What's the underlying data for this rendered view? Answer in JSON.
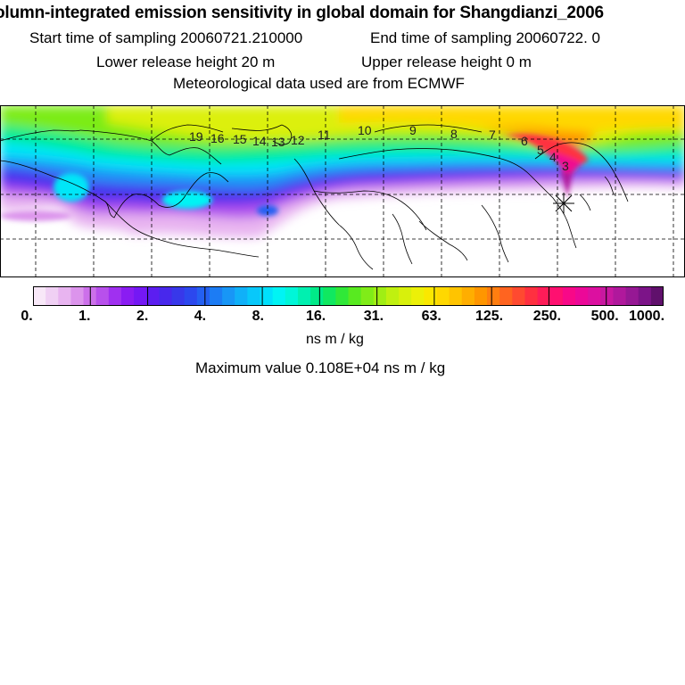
{
  "header": {
    "title": "olumn-integrated emission sensitivity in global domain for Shangdianzi_2006",
    "sampling_start": "Start time of sampling 20060721.210000",
    "sampling_end": "End time of sampling 20060722.     0",
    "lower_release": "Lower release height   20 m",
    "upper_release": "Upper release height    0 m",
    "met_data": "Meteorological data used are from ECMWF"
  },
  "colorbar": {
    "ticks": [
      "0.",
      "1.",
      "2.",
      "4.",
      "8.",
      "16.",
      "31.",
      "63.",
      "125.",
      "250.",
      "500.",
      "1000."
    ],
    "units": "ns m / kg",
    "colors": [
      "#f8e8f8",
      "#f0d0f4",
      "#e8b4f0",
      "#dc94ec",
      "#cc70ea",
      "#b850ec",
      "#a030f0",
      "#8a1cf2",
      "#7418f4",
      "#5c1ef0",
      "#4828ec",
      "#3838ea",
      "#2c48ee",
      "#2460f2",
      "#1c7cf4",
      "#1896f6",
      "#10b0f8",
      "#08c8fa",
      "#00e0fc",
      "#00f4f4",
      "#00f6d8",
      "#00f0b0",
      "#00ea88",
      "#10e860",
      "#30e838",
      "#58ea20",
      "#80ec18",
      "#a0ee14",
      "#c0f010",
      "#d8f00c",
      "#ecf008",
      "#fae800",
      "#ffd800",
      "#ffc400",
      "#ffae00",
      "#ff9600",
      "#ff7e10",
      "#ff6420",
      "#ff4a30",
      "#ff3040",
      "#ff1c58",
      "#ff1070",
      "#f80888",
      "#ec0898",
      "#dc10a0",
      "#c818a0",
      "#b0189c",
      "#961894",
      "#7c1488",
      "#60106c"
    ]
  },
  "map": {
    "contour_labels": [
      "19",
      "16",
      "15",
      "14",
      "13",
      "12",
      "11",
      "10",
      "9",
      "8",
      "7",
      "6",
      "5",
      "4",
      "3"
    ],
    "site_marker": "receptor-star"
  },
  "footer": {
    "maximum": "Maximum value  0.108E+04 ns m / kg"
  }
}
